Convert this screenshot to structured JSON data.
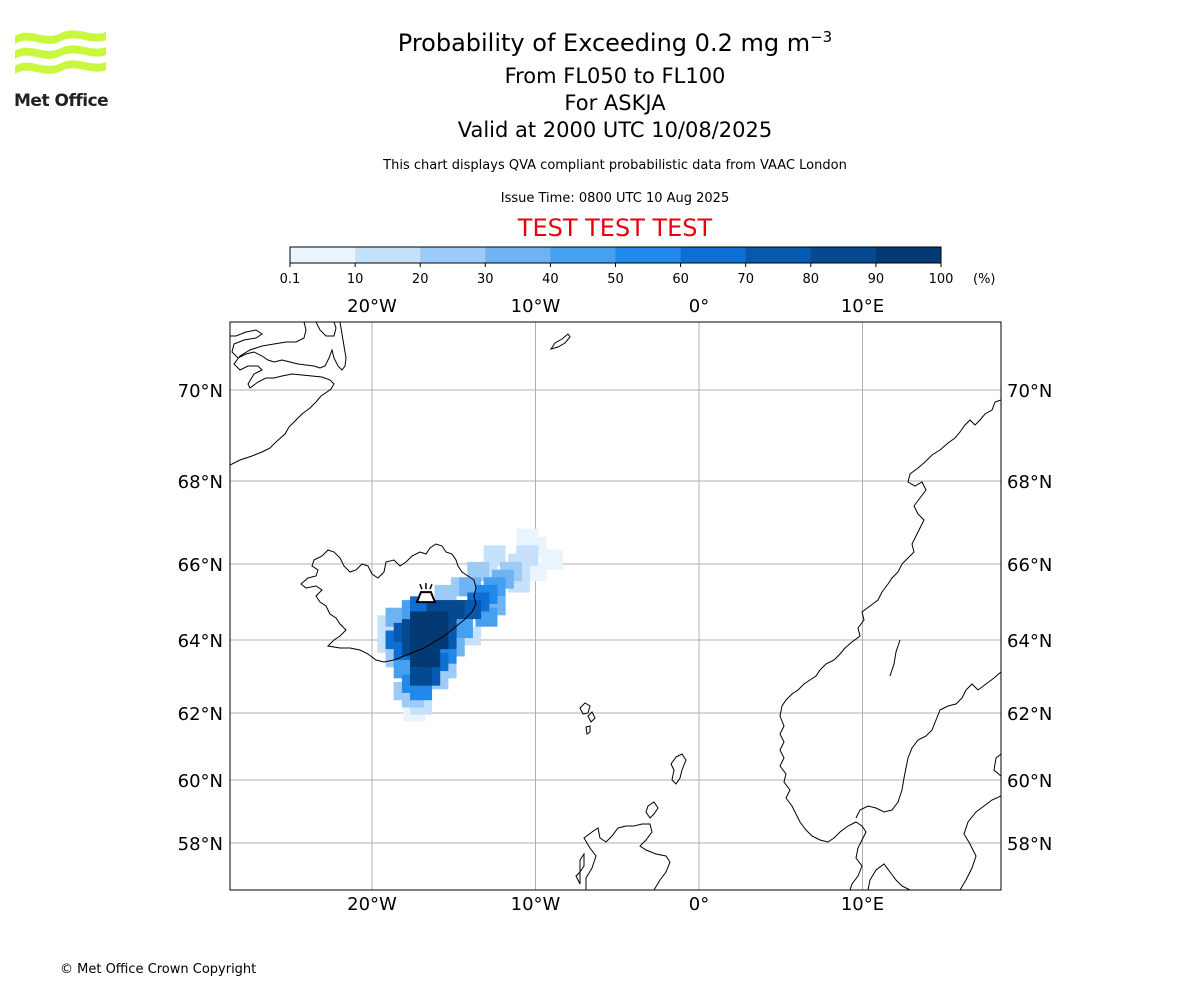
{
  "header": {
    "title_main": "Probability of Exceeding 0.2 mg m",
    "title_sup": "−3",
    "level_range": "From FL050 to FL100",
    "volcano_line": "For ASKJA",
    "valid_line": "Valid at 2000 UTC 10/08/2025",
    "description": "This chart displays QVA compliant probabilistic data from VAAC London",
    "issue_time": "Issue Time: 0800 UTC 10 Aug 2025",
    "test_banner": "TEST TEST TEST",
    "test_color": "#e8000b"
  },
  "logo": {
    "text": "Met Office",
    "icon": "met-office-wave-logo",
    "color": "#c8f73e"
  },
  "colorbar": {
    "tick_labels": [
      "0.1",
      "10",
      "20",
      "30",
      "40",
      "50",
      "60",
      "70",
      "80",
      "90",
      "100"
    ],
    "unit_label": "(%)",
    "colors": [
      "#eaf4ff",
      "#c6e2fb",
      "#9ccbf7",
      "#6fb3f2",
      "#45a0f0",
      "#2189ea",
      "#0d6fd3",
      "#0759b0",
      "#054a90",
      "#033a74",
      "#02295a"
    ]
  },
  "map": {
    "lon_labels": [
      "20°W",
      "10°W",
      "0°",
      "10°E"
    ],
    "lat_labels": [
      "70°N",
      "68°N",
      "66°N",
      "64°N",
      "62°N",
      "60°N",
      "58°N"
    ],
    "volcano_icon": "volcano-marker-icon"
  },
  "chart_data": {
    "type": "heatmap",
    "title": "Probability of Exceeding 0.2 mg m−3",
    "units": "%",
    "x_axis": "longitude",
    "y_axis": "latitude",
    "xlim": [
      -28.7,
      18.5
    ],
    "ylim": [
      56.8,
      71.5
    ],
    "grid": true,
    "volcano": {
      "name": "ASKJA",
      "lon": -16.7,
      "lat": 65.05
    },
    "plume_cells": [
      {
        "lon": -16.5,
        "lat": 64.5,
        "p": 95
      },
      {
        "lon": -16.5,
        "lat": 64.0,
        "p": 95
      },
      {
        "lon": -16.5,
        "lat": 63.5,
        "p": 95
      },
      {
        "lon": -17.0,
        "lat": 64.5,
        "p": 95
      },
      {
        "lon": -17.0,
        "lat": 64.0,
        "p": 95
      },
      {
        "lon": -17.0,
        "lat": 63.5,
        "p": 90
      },
      {
        "lon": -16.0,
        "lat": 64.5,
        "p": 95
      },
      {
        "lon": -16.0,
        "lat": 64.0,
        "p": 90
      },
      {
        "lon": -16.0,
        "lat": 64.8,
        "p": 85
      },
      {
        "lon": -17.5,
        "lat": 64.3,
        "p": 85
      },
      {
        "lon": -17.5,
        "lat": 63.8,
        "p": 80
      },
      {
        "lon": -17.0,
        "lat": 63.0,
        "p": 80
      },
      {
        "lon": -16.5,
        "lat": 63.0,
        "p": 75
      },
      {
        "lon": -15.5,
        "lat": 64.5,
        "p": 85
      },
      {
        "lon": -15.5,
        "lat": 64.0,
        "p": 75
      },
      {
        "lon": -15.0,
        "lat": 64.8,
        "p": 80
      },
      {
        "lon": -14.5,
        "lat": 64.8,
        "p": 75
      },
      {
        "lon": -14.0,
        "lat": 64.8,
        "p": 70
      },
      {
        "lon": -18.0,
        "lat": 64.2,
        "p": 75
      },
      {
        "lon": -18.0,
        "lat": 63.7,
        "p": 65
      },
      {
        "lon": -18.5,
        "lat": 64.0,
        "p": 60
      },
      {
        "lon": -17.0,
        "lat": 62.6,
        "p": 55
      },
      {
        "lon": -17.5,
        "lat": 62.8,
        "p": 50
      },
      {
        "lon": -16.0,
        "lat": 63.4,
        "p": 65
      },
      {
        "lon": -15.5,
        "lat": 63.6,
        "p": 55
      },
      {
        "lon": -13.5,
        "lat": 65.0,
        "p": 60
      },
      {
        "lon": -13.0,
        "lat": 65.2,
        "p": 50
      },
      {
        "lon": -12.5,
        "lat": 65.4,
        "p": 45
      },
      {
        "lon": -12.0,
        "lat": 65.6,
        "p": 35
      },
      {
        "lon": -11.5,
        "lat": 65.8,
        "p": 25
      },
      {
        "lon": -11.0,
        "lat": 66.0,
        "p": 18
      },
      {
        "lon": -10.5,
        "lat": 66.2,
        "p": 10
      },
      {
        "lon": -10.0,
        "lat": 66.4,
        "p": 8
      },
      {
        "lon": -9.0,
        "lat": 66.1,
        "p": 5
      },
      {
        "lon": -10.5,
        "lat": 66.6,
        "p": 5
      },
      {
        "lon": -12.5,
        "lat": 66.2,
        "p": 15
      },
      {
        "lon": -13.5,
        "lat": 65.8,
        "p": 20
      },
      {
        "lon": -14.0,
        "lat": 65.4,
        "p": 35
      },
      {
        "lon": -13.0,
        "lat": 64.6,
        "p": 40
      },
      {
        "lon": -12.5,
        "lat": 64.9,
        "p": 30
      },
      {
        "lon": -14.5,
        "lat": 64.3,
        "p": 40
      },
      {
        "lon": -15.0,
        "lat": 63.8,
        "p": 30
      },
      {
        "lon": -15.5,
        "lat": 63.2,
        "p": 25
      },
      {
        "lon": -16.0,
        "lat": 62.9,
        "p": 25
      },
      {
        "lon": -17.5,
        "lat": 62.4,
        "p": 20
      },
      {
        "lon": -18.0,
        "lat": 62.6,
        "p": 20
      },
      {
        "lon": -18.0,
        "lat": 63.2,
        "p": 40
      },
      {
        "lon": -18.5,
        "lat": 63.5,
        "p": 25
      },
      {
        "lon": -19.0,
        "lat": 63.9,
        "p": 15
      },
      {
        "lon": -19.0,
        "lat": 64.4,
        "p": 15
      },
      {
        "lon": -18.5,
        "lat": 64.6,
        "p": 30
      },
      {
        "lon": -17.5,
        "lat": 64.8,
        "p": 45
      },
      {
        "lon": -17.0,
        "lat": 64.9,
        "p": 60
      },
      {
        "lon": -17.0,
        "lat": 62.2,
        "p": 10
      },
      {
        "lon": -17.4,
        "lat": 62.0,
        "p": 5
      },
      {
        "lon": -14.0,
        "lat": 64.1,
        "p": 15
      },
      {
        "lon": -11.0,
        "lat": 65.5,
        "p": 15
      },
      {
        "lon": -10.0,
        "lat": 65.8,
        "p": 6
      },
      {
        "lon": -15.5,
        "lat": 65.2,
        "p": 25
      },
      {
        "lon": -14.5,
        "lat": 65.4,
        "p": 20
      },
      {
        "lon": -13.0,
        "lat": 65.8,
        "p": 12
      }
    ]
  },
  "footer": {
    "copyright": "© Met Office Crown Copyright"
  }
}
